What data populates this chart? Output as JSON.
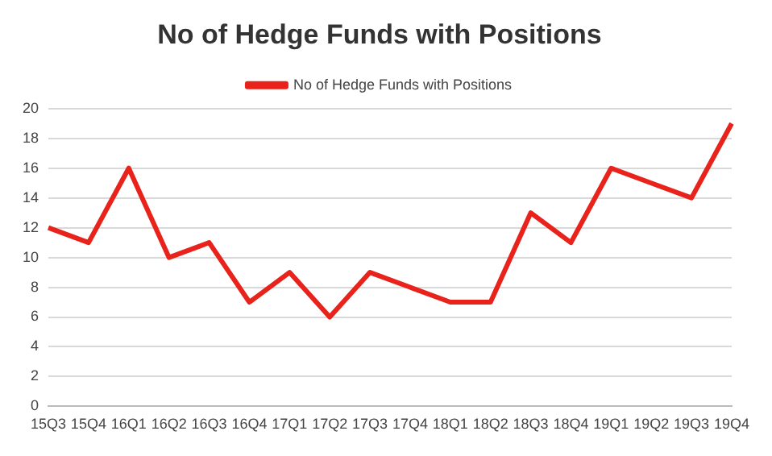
{
  "chart_data": {
    "type": "line",
    "title": "No of Hedge Funds with Positions",
    "categories": [
      "15Q3",
      "15Q4",
      "16Q1",
      "16Q2",
      "16Q3",
      "16Q4",
      "17Q1",
      "17Q2",
      "17Q3",
      "17Q4",
      "18Q1",
      "18Q2",
      "18Q3",
      "18Q4",
      "19Q1",
      "19Q2",
      "19Q3",
      "19Q4"
    ],
    "series": [
      {
        "name": "No of Hedge Funds with Positions",
        "color": "#e8231b",
        "values": [
          12,
          11,
          16,
          10,
          11,
          7,
          9,
          6,
          9,
          8,
          7,
          7,
          13,
          11,
          16,
          15,
          14,
          19
        ]
      }
    ],
    "ylim": [
      0,
      20
    ],
    "yticks": [
      0,
      2,
      4,
      6,
      8,
      10,
      12,
      14,
      16,
      18,
      20
    ],
    "grid": "y",
    "legend": "top",
    "marker": "none"
  }
}
